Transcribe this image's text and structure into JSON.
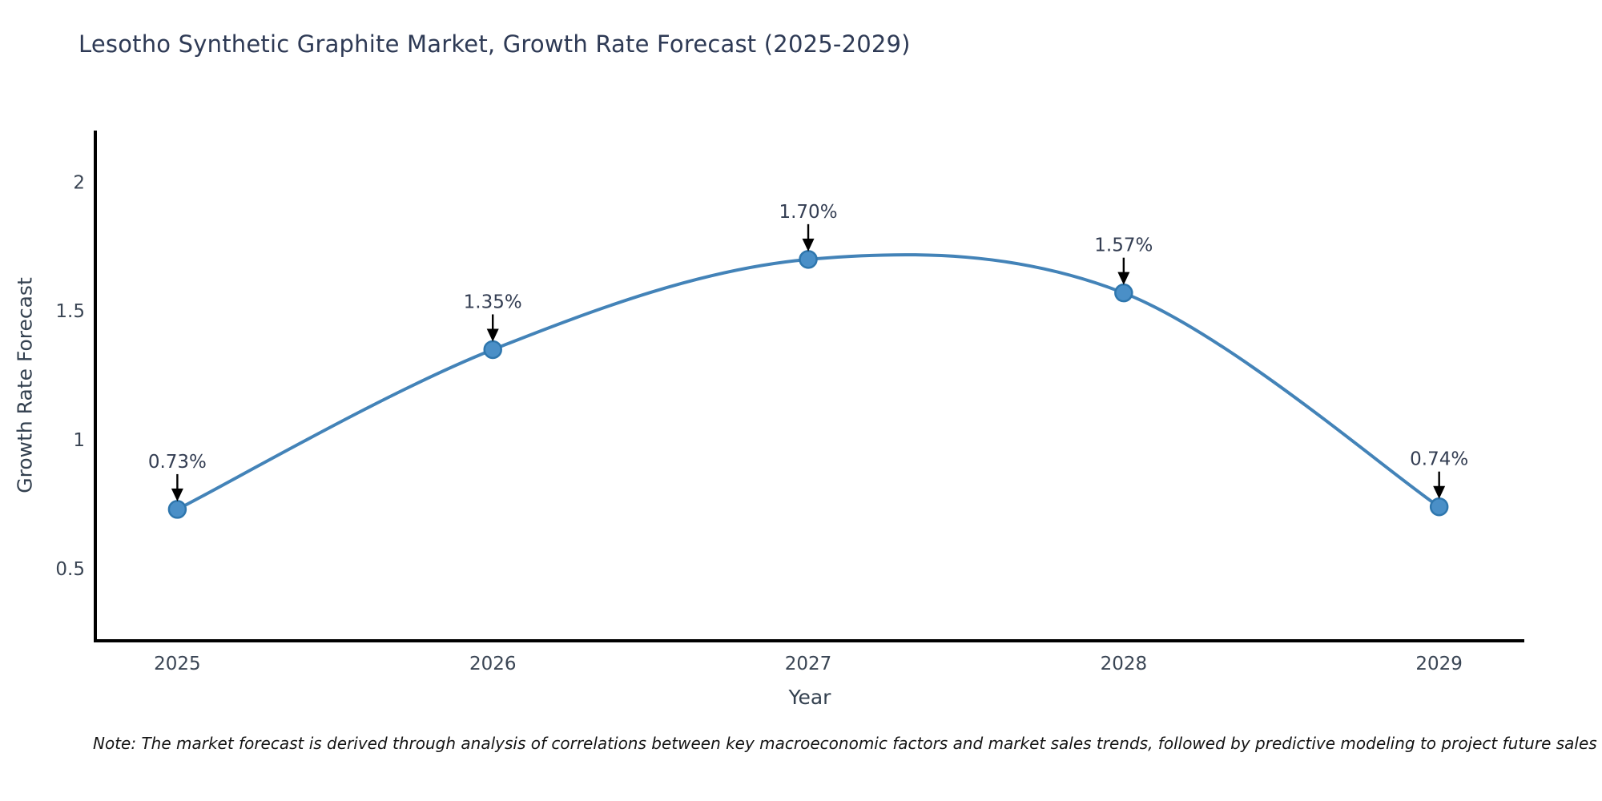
{
  "title": "Lesotho Synthetic Graphite Market, Growth Rate Forecast (2025-2029)",
  "note": "Note: The market forecast is derived through analysis of correlations between key macroeconomic factors and market sales trends, followed by predictive modeling to project future sales",
  "chart_data": {
    "type": "line",
    "title": "Lesotho Synthetic Graphite Market, Growth Rate Forecast (2025-2029)",
    "xlabel": "Year",
    "ylabel": "Growth Rate Forecast",
    "x": [
      2025,
      2026,
      2027,
      2028,
      2029
    ],
    "series": [
      {
        "name": "Growth Rate Forecast",
        "values": [
          0.73,
          1.35,
          1.7,
          1.57,
          0.74
        ]
      }
    ],
    "point_labels": [
      "0.73%",
      "1.35%",
      "1.70%",
      "1.57%",
      "0.74%"
    ],
    "xtick_labels": [
      "2025",
      "2026",
      "2027",
      "2028",
      "2029"
    ],
    "yticks": [
      0.5,
      1.0,
      1.5,
      2.0
    ],
    "ytick_labels": [
      "0.5",
      "1",
      "1.5",
      "2"
    ],
    "xlim": [
      2024.74,
      2029.27
    ],
    "ylim": [
      0.22,
      2.2
    ],
    "grid": false,
    "legend_position": "none",
    "line_style": "smooth-spline",
    "marker": "circle",
    "annotation_style": "value-label-with-down-arrow",
    "colors": {
      "line": "#4383b8",
      "marker_fill": "#4a8fc7",
      "marker_edge": "#2e76ad",
      "annotation_text": "#333d52",
      "annotation_arrow": "#000000",
      "axis": "#000000",
      "title_text": "#2e3a55",
      "axis_label_text": "#33404f",
      "tick_text": "#3a4554",
      "note_text": "#151515"
    }
  }
}
